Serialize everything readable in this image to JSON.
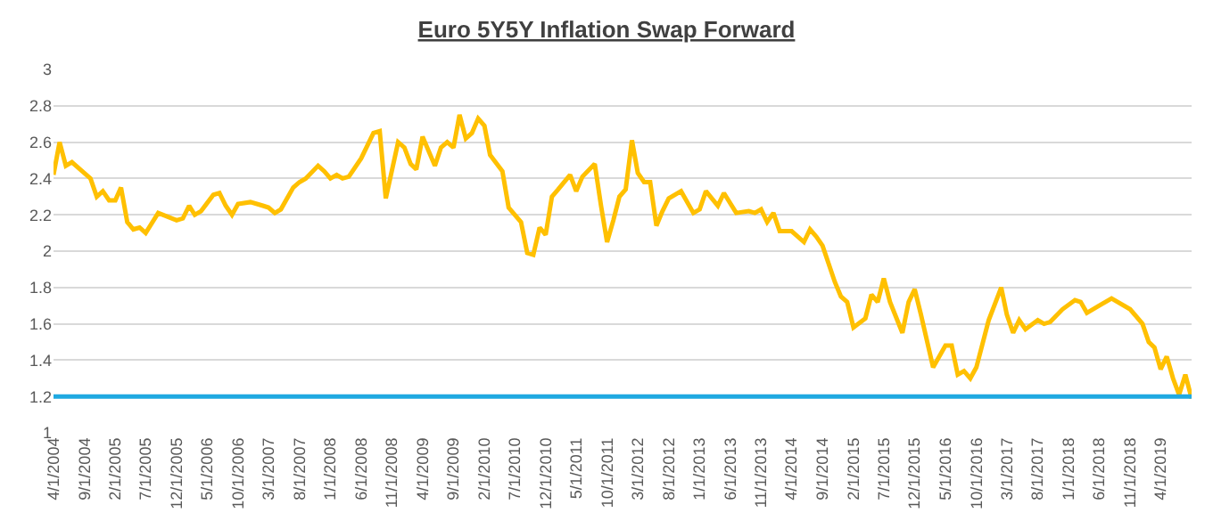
{
  "chart_data": {
    "type": "line",
    "title": "Euro 5Y5Y Inflation Swap Forward",
    "x": [
      "2004-04",
      "2004-05",
      "2004-06",
      "2004-07",
      "2004-10",
      "2004-11",
      "2004-12",
      "2005-01",
      "2005-02",
      "2005-03",
      "2005-04",
      "2005-05",
      "2005-06",
      "2005-07",
      "2005-09",
      "2005-12",
      "2006-01",
      "2006-02",
      "2006-03",
      "2006-04",
      "2006-06",
      "2006-07",
      "2006-08",
      "2006-09",
      "2006-10",
      "2006-12",
      "2007-02",
      "2007-03",
      "2007-04",
      "2007-05",
      "2007-07",
      "2007-08",
      "2007-09",
      "2007-11",
      "2007-12",
      "2008-01",
      "2008-02",
      "2008-03",
      "2008-04",
      "2008-06",
      "2008-08",
      "2008-09",
      "2008-10",
      "2008-12",
      "2009-01",
      "2009-02",
      "2009-03",
      "2009-04",
      "2009-06",
      "2009-07",
      "2009-08",
      "2009-09",
      "2009-10",
      "2009-11",
      "2009-12",
      "2010-01",
      "2010-02",
      "2010-03",
      "2010-05",
      "2010-06",
      "2010-08",
      "2010-09",
      "2010-10",
      "2010-11",
      "2010-12",
      "2011-01",
      "2011-02",
      "2011-04",
      "2011-05",
      "2011-06",
      "2011-08",
      "2011-09",
      "2011-10",
      "2011-11",
      "2011-12",
      "2012-01",
      "2012-02",
      "2012-03",
      "2012-04",
      "2012-05",
      "2012-06",
      "2012-07",
      "2012-08",
      "2012-10",
      "2012-12",
      "2013-01",
      "2013-02",
      "2013-04",
      "2013-05",
      "2013-07",
      "2013-09",
      "2013-10",
      "2013-11",
      "2013-12",
      "2014-01",
      "2014-02",
      "2014-04",
      "2014-06",
      "2014-07",
      "2014-08",
      "2014-09",
      "2014-11",
      "2014-12",
      "2015-01",
      "2015-02",
      "2015-04",
      "2015-05",
      "2015-06",
      "2015-07",
      "2015-08",
      "2015-10",
      "2015-11",
      "2015-12",
      "2016-01",
      "2016-03",
      "2016-05",
      "2016-06",
      "2016-07",
      "2016-08",
      "2016-09",
      "2016-10",
      "2016-12",
      "2017-02",
      "2017-03",
      "2017-04",
      "2017-05",
      "2017-06",
      "2017-08",
      "2017-09",
      "2017-10",
      "2017-12",
      "2018-02",
      "2018-03",
      "2018-04",
      "2018-06",
      "2018-08",
      "2018-11",
      "2019-01",
      "2019-02",
      "2019-03",
      "2019-04",
      "2019-05",
      "2019-06",
      "2019-07",
      "2019-08",
      "2019-09"
    ],
    "series": [
      {
        "color": "#ffc000",
        "values": [
          2.42,
          2.6,
          2.47,
          2.49,
          2.4,
          2.3,
          2.33,
          2.28,
          2.28,
          2.35,
          2.16,
          2.12,
          2.13,
          2.1,
          2.21,
          2.17,
          2.18,
          2.25,
          2.2,
          2.22,
          2.31,
          2.32,
          2.25,
          2.2,
          2.26,
          2.27,
          2.25,
          2.24,
          2.21,
          2.23,
          2.35,
          2.38,
          2.4,
          2.47,
          2.44,
          2.4,
          2.42,
          2.4,
          2.41,
          2.51,
          2.65,
          2.66,
          2.29,
          2.6,
          2.57,
          2.48,
          2.45,
          2.63,
          2.47,
          2.57,
          2.6,
          2.57,
          2.75,
          2.62,
          2.65,
          2.73,
          2.69,
          2.53,
          2.44,
          2.24,
          2.16,
          1.99,
          1.98,
          2.13,
          2.09,
          2.3,
          2.34,
          2.42,
          2.33,
          2.41,
          2.48,
          2.25,
          2.05,
          2.17,
          2.3,
          2.34,
          2.61,
          2.43,
          2.38,
          2.38,
          2.14,
          2.22,
          2.29,
          2.33,
          2.21,
          2.23,
          2.33,
          2.25,
          2.32,
          2.21,
          2.22,
          2.21,
          2.23,
          2.16,
          2.21,
          2.11,
          2.11,
          2.05,
          2.12,
          2.08,
          2.03,
          1.83,
          1.75,
          1.72,
          1.58,
          1.63,
          1.76,
          1.72,
          1.85,
          1.72,
          1.55,
          1.72,
          1.79,
          1.65,
          1.36,
          1.48,
          1.48,
          1.32,
          1.34,
          1.3,
          1.36,
          1.62,
          1.8,
          1.65,
          1.55,
          1.62,
          1.57,
          1.62,
          1.6,
          1.61,
          1.68,
          1.73,
          1.72,
          1.66,
          1.7,
          1.74,
          1.68,
          1.6,
          1.5,
          1.47,
          1.35,
          1.42,
          1.3,
          1.21,
          1.32,
          1.19
        ]
      },
      {
        "color": "#1fa9e1",
        "x": [
          "2004-04-01",
          "2019-09-01"
        ],
        "values": [
          1.2,
          1.2
        ]
      }
    ],
    "xlim": [
      "2004-04-01",
      "2019-09-01"
    ],
    "xticks": [
      {
        "value": "2004-04-01",
        "label": "4/1/2004"
      },
      {
        "value": "2004-09-01",
        "label": "9/1/2004"
      },
      {
        "value": "2005-02-01",
        "label": "2/1/2005"
      },
      {
        "value": "2005-07-01",
        "label": "7/1/2005"
      },
      {
        "value": "2005-12-01",
        "label": "12/1/2005"
      },
      {
        "value": "2006-05-01",
        "label": "5/1/2006"
      },
      {
        "value": "2006-10-01",
        "label": "10/1/2006"
      },
      {
        "value": "2007-03-01",
        "label": "3/1/2007"
      },
      {
        "value": "2007-08-01",
        "label": "8/1/2007"
      },
      {
        "value": "2008-01-01",
        "label": "1/1/2008"
      },
      {
        "value": "2008-06-01",
        "label": "6/1/2008"
      },
      {
        "value": "2008-11-01",
        "label": "11/1/2008"
      },
      {
        "value": "2009-04-01",
        "label": "4/1/2009"
      },
      {
        "value": "2009-09-01",
        "label": "9/1/2009"
      },
      {
        "value": "2010-02-01",
        "label": "2/1/2010"
      },
      {
        "value": "2010-07-01",
        "label": "7/1/2010"
      },
      {
        "value": "2010-12-01",
        "label": "12/1/2010"
      },
      {
        "value": "2011-05-01",
        "label": "5/1/2011"
      },
      {
        "value": "2011-10-01",
        "label": "10/1/2011"
      },
      {
        "value": "2012-03-01",
        "label": "3/1/2012"
      },
      {
        "value": "2012-08-01",
        "label": "8/1/2012"
      },
      {
        "value": "2013-01-01",
        "label": "1/1/2013"
      },
      {
        "value": "2013-06-01",
        "label": "6/1/2013"
      },
      {
        "value": "2013-11-01",
        "label": "11/1/2013"
      },
      {
        "value": "2014-04-01",
        "label": "4/1/2014"
      },
      {
        "value": "2014-09-01",
        "label": "9/1/2014"
      },
      {
        "value": "2015-02-01",
        "label": "2/1/2015"
      },
      {
        "value": "2015-07-01",
        "label": "7/1/2015"
      },
      {
        "value": "2015-12-01",
        "label": "12/1/2015"
      },
      {
        "value": "2016-05-01",
        "label": "5/1/2016"
      },
      {
        "value": "2016-10-01",
        "label": "10/1/2016"
      },
      {
        "value": "2017-03-01",
        "label": "3/1/2017"
      },
      {
        "value": "2017-08-01",
        "label": "8/1/2017"
      },
      {
        "value": "2018-01-01",
        "label": "1/1/2018"
      },
      {
        "value": "2018-06-01",
        "label": "6/1/2018"
      },
      {
        "value": "2018-11-01",
        "label": "11/1/2018"
      },
      {
        "value": "2019-04-01",
        "label": "4/1/2019"
      }
    ],
    "ylim": [
      1,
      3
    ],
    "yticks": [
      1,
      1.2,
      1.4,
      1.6,
      1.8,
      2,
      2.2,
      2.4,
      2.6,
      2.8,
      3
    ],
    "grid": "y",
    "marker": "none",
    "line_style": "solid"
  }
}
